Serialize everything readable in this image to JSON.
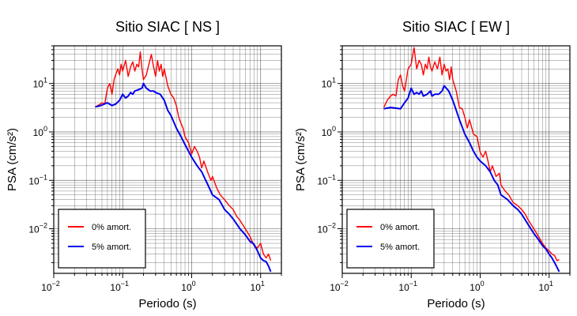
{
  "chart_data": [
    {
      "type": "line",
      "title": "Sitio SIAC [ NS ]",
      "xlabel": "Periodo (s)",
      "ylabel": "PSA (cm/s²)",
      "xscale": "log",
      "yscale": "log",
      "xlim": [
        0.01,
        20
      ],
      "ylim": [
        0.0012,
        60
      ],
      "xticks": [
        {
          "b": "10",
          "e": "−2"
        },
        {
          "b": "10",
          "e": "−1"
        },
        {
          "b": "10",
          "e": "0"
        },
        {
          "b": "10",
          "e": "1"
        }
      ],
      "yticks": [
        {
          "b": "10",
          "e": "−2"
        },
        {
          "b": "10",
          "e": "−1"
        },
        {
          "b": "10",
          "e": "0"
        },
        {
          "b": "10",
          "e": "1"
        }
      ],
      "grid": true,
      "legend_position": "bottom-left",
      "series": [
        {
          "name": "0% amort.",
          "color": "#ff0000",
          "x": [
            0.04,
            0.045,
            0.05,
            0.055,
            0.06,
            0.065,
            0.07,
            0.075,
            0.08,
            0.085,
            0.09,
            0.095,
            0.1,
            0.11,
            0.12,
            0.13,
            0.14,
            0.15,
            0.16,
            0.17,
            0.18,
            0.19,
            0.2,
            0.22,
            0.24,
            0.26,
            0.28,
            0.3,
            0.32,
            0.34,
            0.36,
            0.38,
            0.4,
            0.45,
            0.5,
            0.55,
            0.6,
            0.65,
            0.7,
            0.75,
            0.8,
            0.9,
            1.0,
            1.1,
            1.2,
            1.3,
            1.4,
            1.5,
            1.7,
            1.9,
            2.0,
            2.3,
            2.6,
            3.0,
            3.5,
            4.0,
            4.5,
            5.0,
            6.0,
            7.0,
            8.0,
            9.0,
            10.0,
            11.0,
            12.0,
            13.0,
            14.0
          ],
          "y": [
            3.3,
            3.6,
            4.0,
            3.8,
            8.0,
            10.0,
            6.0,
            12.0,
            16.0,
            20.0,
            15.0,
            25.0,
            18.0,
            30.0,
            14.0,
            22.0,
            28.0,
            18.0,
            25.0,
            22.0,
            45.0,
            20.0,
            12.0,
            15.0,
            25.0,
            40.0,
            22.0,
            14.0,
            30.0,
            18.0,
            25.0,
            14.0,
            20.0,
            9.0,
            6.0,
            5.0,
            3.5,
            2.0,
            1.5,
            1.2,
            0.8,
            0.6,
            0.35,
            0.5,
            0.4,
            0.3,
            0.18,
            0.25,
            0.15,
            0.1,
            0.12,
            0.07,
            0.05,
            0.04,
            0.03,
            0.025,
            0.018,
            0.015,
            0.01,
            0.007,
            0.0045,
            0.004,
            0.005,
            0.003,
            0.0025,
            0.003,
            0.0022
          ]
        },
        {
          "name": "5% amort.",
          "color": "#0000ee",
          "x": [
            0.04,
            0.045,
            0.05,
            0.06,
            0.07,
            0.08,
            0.09,
            0.1,
            0.11,
            0.12,
            0.13,
            0.14,
            0.15,
            0.17,
            0.19,
            0.2,
            0.22,
            0.25,
            0.28,
            0.3,
            0.35,
            0.4,
            0.45,
            0.5,
            0.6,
            0.7,
            0.8,
            0.9,
            1.0,
            1.2,
            1.4,
            1.6,
            1.8,
            2.0,
            2.5,
            3.0,
            3.5,
            4.0,
            5.0,
            6.0,
            7.0,
            8.0,
            9.0,
            10.0,
            11.0,
            12.0,
            13.0,
            14.0
          ],
          "y": [
            3.3,
            3.4,
            3.6,
            4.0,
            3.5,
            3.8,
            4.5,
            6.0,
            5.0,
            5.5,
            6.5,
            6.0,
            7.0,
            7.5,
            8.0,
            10.0,
            8.0,
            7.0,
            7.0,
            6.5,
            6.0,
            4.5,
            2.8,
            2.2,
            1.2,
            0.8,
            0.55,
            0.4,
            0.3,
            0.2,
            0.15,
            0.1,
            0.07,
            0.05,
            0.04,
            0.025,
            0.02,
            0.016,
            0.01,
            0.0075,
            0.0055,
            0.0048,
            0.0035,
            0.0025,
            0.0022,
            0.0021,
            0.0017,
            0.0013
          ]
        }
      ]
    },
    {
      "type": "line",
      "title": "Sitio SIAC [ EW ]",
      "xlabel": "Periodo (s)",
      "ylabel": "PSA (cm/s²)",
      "xscale": "log",
      "yscale": "log",
      "xlim": [
        0.01,
        20
      ],
      "ylim": [
        0.0012,
        60
      ],
      "xticks": [
        {
          "b": "10",
          "e": "−2"
        },
        {
          "b": "10",
          "e": "−1"
        },
        {
          "b": "10",
          "e": "0"
        },
        {
          "b": "10",
          "e": "1"
        }
      ],
      "yticks": [
        {
          "b": "10",
          "e": "−2"
        },
        {
          "b": "10",
          "e": "−1"
        },
        {
          "b": "10",
          "e": "0"
        },
        {
          "b": "10",
          "e": "1"
        }
      ],
      "grid": true,
      "legend_position": "bottom-left",
      "series": [
        {
          "name": "0% amort.",
          "color": "#ff0000",
          "x": [
            0.04,
            0.045,
            0.05,
            0.055,
            0.06,
            0.065,
            0.07,
            0.075,
            0.08,
            0.085,
            0.09,
            0.1,
            0.11,
            0.12,
            0.13,
            0.14,
            0.15,
            0.16,
            0.17,
            0.18,
            0.19,
            0.2,
            0.22,
            0.24,
            0.26,
            0.28,
            0.3,
            0.32,
            0.34,
            0.36,
            0.38,
            0.4,
            0.45,
            0.5,
            0.55,
            0.6,
            0.65,
            0.7,
            0.8,
            0.9,
            1.0,
            1.1,
            1.2,
            1.3,
            1.4,
            1.5,
            1.7,
            1.9,
            2.0,
            2.3,
            2.6,
            3.0,
            3.5,
            4.0,
            4.5,
            5.0,
            6.0,
            7.0,
            8.0,
            9.0,
            10.0,
            11.0,
            12.0,
            13.0,
            14.0
          ],
          "y": [
            3.2,
            4.5,
            5.5,
            6.0,
            5.5,
            12.0,
            15.0,
            9.0,
            7.0,
            12.0,
            20.0,
            25.0,
            55.0,
            20.0,
            30.0,
            25.0,
            15.0,
            25.0,
            20.0,
            35.0,
            22.0,
            18.0,
            28.0,
            20.0,
            35.0,
            15.0,
            25.0,
            18.0,
            20.0,
            12.0,
            22.0,
            12.0,
            7.0,
            3.2,
            3.0,
            2.0,
            1.2,
            1.8,
            0.9,
            0.8,
            0.38,
            0.3,
            0.4,
            0.25,
            0.15,
            0.2,
            0.12,
            0.14,
            0.08,
            0.06,
            0.05,
            0.035,
            0.03,
            0.025,
            0.02,
            0.015,
            0.01,
            0.007,
            0.005,
            0.004,
            0.0035,
            0.003,
            0.0028,
            0.0022,
            0.0023
          ]
        },
        {
          "name": "5% amort.",
          "color": "#0000ee",
          "x": [
            0.04,
            0.05,
            0.06,
            0.07,
            0.08,
            0.09,
            0.1,
            0.11,
            0.12,
            0.13,
            0.14,
            0.15,
            0.17,
            0.19,
            0.2,
            0.22,
            0.25,
            0.28,
            0.3,
            0.35,
            0.4,
            0.45,
            0.5,
            0.6,
            0.7,
            0.8,
            0.9,
            1.0,
            1.2,
            1.4,
            1.6,
            1.8,
            2.0,
            2.5,
            3.0,
            3.5,
            4.0,
            5.0,
            6.0,
            7.0,
            8.0,
            9.0,
            10.0,
            11.0,
            12.0,
            13.0,
            14.0
          ],
          "y": [
            3.0,
            3.2,
            3.1,
            3.0,
            4.0,
            5.0,
            8.0,
            6.0,
            6.5,
            6.0,
            7.0,
            5.5,
            6.0,
            7.0,
            5.5,
            6.0,
            6.0,
            7.0,
            9.0,
            7.0,
            4.5,
            2.8,
            1.8,
            0.9,
            0.6,
            0.4,
            0.3,
            0.25,
            0.2,
            0.15,
            0.1,
            0.08,
            0.05,
            0.04,
            0.03,
            0.025,
            0.02,
            0.012,
            0.008,
            0.006,
            0.0045,
            0.0038,
            0.003,
            0.0025,
            0.002,
            0.0016,
            0.0013
          ]
        }
      ]
    }
  ]
}
